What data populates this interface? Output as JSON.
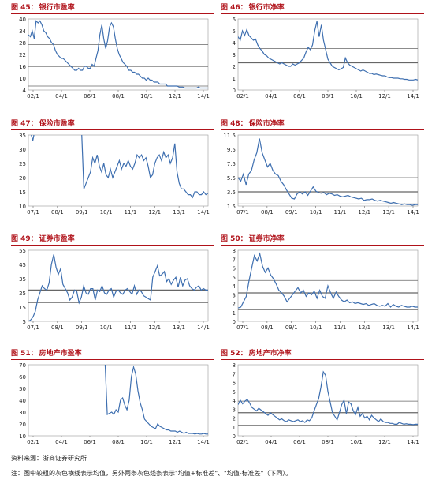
{
  "colors": {
    "title": "#b0121a",
    "line": "#3e6fb0",
    "ref": "#666666"
  },
  "chart_data": [
    {
      "id": "c45",
      "fig_no": "图 45：",
      "title": "银行市盈率",
      "type": "line",
      "yticks": [
        "4",
        "10",
        "16",
        "22",
        "28",
        "34",
        "40"
      ],
      "ylim": [
        4,
        40
      ],
      "xticks": [
        "02/1",
        "04/1",
        "06/1",
        "08/1",
        "10/1",
        "12/1",
        "14/1"
      ],
      "refs": [
        6,
        16,
        27
      ],
      "series": [
        {
          "values": [
            32,
            31,
            34,
            30,
            39,
            38,
            39,
            37,
            34,
            33,
            31,
            30,
            28,
            27,
            24,
            22,
            21,
            20,
            20,
            19,
            18,
            17,
            16,
            15,
            14,
            14,
            15,
            14,
            14,
            16,
            16,
            15,
            15,
            17,
            16,
            20,
            24,
            32,
            37,
            30,
            25,
            29,
            36,
            38,
            36,
            30,
            25,
            22,
            20,
            18,
            17,
            16,
            14,
            14,
            13,
            13,
            12,
            12,
            11,
            10,
            10,
            9,
            10,
            9,
            9,
            8,
            8,
            8,
            7,
            7,
            7,
            7,
            6,
            6,
            6,
            6,
            6,
            6,
            5.5,
            5.5,
            5.5,
            5,
            5,
            5,
            5,
            5,
            5,
            5,
            5.5,
            5,
            5,
            5,
            5,
            5
          ]
        }
      ]
    },
    {
      "id": "c46",
      "fig_no": "图 46：",
      "title": "银行市净率",
      "type": "line",
      "yticks": [
        "0",
        "1",
        "2",
        "3",
        "4",
        "5",
        "6"
      ],
      "ylim": [
        0,
        6
      ],
      "xticks": [
        "02/1",
        "04/1",
        "06/1",
        "08/1",
        "10/1",
        "12/1",
        "14/1"
      ],
      "refs": [
        1.1,
        2.3,
        3.5
      ],
      "series": [
        {
          "values": [
            4.5,
            4.2,
            5,
            4.6,
            5.1,
            4.6,
            4.4,
            4.2,
            4.3,
            3.8,
            3.5,
            3.3,
            3,
            2.9,
            2.7,
            2.6,
            2.5,
            2.4,
            2.3,
            2.2,
            2.3,
            2.2,
            2.1,
            2,
            2,
            2.2,
            2.1,
            2.2,
            2.3,
            2.5,
            2.7,
            3.2,
            3.6,
            3.4,
            3.8,
            5,
            5.8,
            4.5,
            5.5,
            4.2,
            3.4,
            2.6,
            2.3,
            2,
            1.9,
            1.8,
            1.7,
            1.8,
            1.9,
            2.7,
            2.3,
            2.1,
            2,
            1.9,
            1.8,
            1.7,
            1.6,
            1.7,
            1.6,
            1.5,
            1.4,
            1.4,
            1.3,
            1.35,
            1.3,
            1.25,
            1.2,
            1.2,
            1.1,
            1.05,
            1.05,
            1,
            1,
            1,
            0.95,
            0.95,
            0.9,
            0.9,
            0.85,
            0.85,
            0.85,
            0.9,
            0.85
          ]
        }
      ]
    },
    {
      "id": "c47",
      "fig_no": "图 47：",
      "title": "保险市盈率",
      "type": "line",
      "yticks": [
        "10",
        "15",
        "20",
        "25",
        "30",
        "35"
      ],
      "ylim": [
        10,
        35
      ],
      "xticks": [
        "07/1",
        "08/1",
        "09/1",
        "10/1",
        "11/1",
        "12/1",
        "13/1",
        "14/1"
      ],
      "refs": [],
      "series": [
        {
          "values": [
            null,
            36,
            33,
            37,
            null,
            null,
            null,
            null,
            null,
            null,
            null,
            null,
            null,
            null,
            null,
            null,
            null,
            null,
            null,
            null,
            null,
            null,
            null,
            null,
            36,
            16,
            18,
            20,
            22,
            27,
            25,
            28,
            24,
            22,
            25,
            21,
            20,
            23,
            20,
            22,
            24,
            26,
            23,
            25,
            24,
            26,
            24,
            23,
            25,
            28,
            27,
            28,
            26,
            27,
            24,
            20,
            21,
            25,
            27,
            28,
            26,
            29,
            27,
            28,
            25,
            27,
            32,
            22,
            18,
            16,
            16,
            15,
            14,
            14,
            13,
            15,
            15,
            14,
            14,
            15,
            14,
            14.5
          ]
        }
      ]
    },
    {
      "id": "c48",
      "fig_no": "图 48：",
      "title": "保险市净率",
      "type": "line",
      "yticks": [
        "1.5",
        "3.5",
        "5.5",
        "7.5",
        "9.5",
        "11.5"
      ],
      "ylim": [
        1.5,
        11.5
      ],
      "xticks": [
        "07/1",
        "08/1",
        "09/1",
        "10/1",
        "11/1",
        "12/1",
        "13/1",
        "14/1"
      ],
      "refs": [
        1.8,
        3.5,
        5.5
      ],
      "series": [
        {
          "values": [
            5.5,
            5,
            6,
            4.5,
            6,
            6.5,
            8,
            9,
            11,
            9,
            8,
            7,
            7.5,
            6.5,
            6,
            5.8,
            5,
            4.5,
            3.8,
            3.2,
            2.6,
            2.5,
            3.2,
            3.5,
            3.2,
            3.5,
            3,
            3.6,
            4.2,
            3.6,
            3.4,
            3.3,
            3.4,
            3.1,
            3.3,
            3.2,
            3.0,
            3.1,
            2.9,
            2.8,
            2.9,
            3,
            2.8,
            2.7,
            2.6,
            2.5,
            2.6,
            2.3,
            2.4,
            2.4,
            2.5,
            2.3,
            2.2,
            2.3,
            2.2,
            2.1,
            2,
            1.9,
            2,
            1.9,
            1.8,
            1.7,
            1.8,
            1.7,
            1.7,
            1.6,
            1.7,
            1.7
          ]
        }
      ]
    },
    {
      "id": "c49",
      "fig_no": "图 49：",
      "title": "证券市盈率",
      "type": "line",
      "yticks": [
        "5",
        "15",
        "25",
        "35",
        "45",
        "55"
      ],
      "ylim": [
        5,
        55
      ],
      "xticks": [
        "07/1",
        "08/1",
        "09/1",
        "10/1",
        "11/1",
        "12/1",
        "13/1",
        "14/1"
      ],
      "refs": [
        18,
        27,
        37
      ],
      "series": [
        {
          "values": [
            5,
            6,
            8,
            12,
            20,
            25,
            30,
            28,
            27,
            32,
            45,
            52,
            43,
            38,
            42,
            31,
            28,
            25,
            20,
            22,
            27,
            26,
            18,
            22,
            30,
            25,
            24,
            28,
            28,
            20,
            27,
            26,
            30,
            25,
            24,
            27,
            28,
            22,
            26,
            27,
            25,
            24,
            27,
            28,
            26,
            24,
            30,
            24,
            27,
            26,
            23,
            22,
            21,
            20,
            36,
            40,
            44,
            37,
            38,
            40,
            33,
            35,
            31,
            34,
            36,
            29,
            36,
            30,
            34,
            35,
            30,
            28,
            27,
            29,
            30,
            27,
            28,
            27,
            27
          ]
        }
      ]
    },
    {
      "id": "c50",
      "fig_no": "图 50：",
      "title": "证券市净率",
      "type": "line",
      "yticks": [
        "0",
        "1",
        "2",
        "3",
        "4",
        "5",
        "6",
        "7",
        "8"
      ],
      "ylim": [
        0,
        8
      ],
      "xticks": [
        "07/1",
        "08/1",
        "09/1",
        "10/1",
        "11/1",
        "12/1",
        "13/1",
        "14/1"
      ],
      "refs": [
        1.3,
        3.2,
        4.6
      ],
      "series": [
        {
          "values": [
            1.5,
            1.6,
            2.2,
            2.8,
            4.5,
            6,
            7.4,
            6.8,
            7.6,
            6.2,
            5.5,
            6,
            5.2,
            4.8,
            4.2,
            3.5,
            3.2,
            2.8,
            2.2,
            2.6,
            3,
            3.4,
            3.8,
            3.2,
            3.5,
            2.8,
            3.2,
            3,
            3.4,
            2.6,
            3.5,
            2.8,
            2.6,
            4,
            3.2,
            2.6,
            3.3,
            2.8,
            2.4,
            2.2,
            2.4,
            2.1,
            2.2,
            2,
            2.1,
            2,
            1.9,
            2,
            1.8,
            1.9,
            2,
            1.8,
            1.7,
            1.8,
            1.7,
            2,
            1.6,
            1.9,
            1.7,
            1.6,
            1.8,
            1.7,
            1.6,
            1.6,
            1.7,
            1.6,
            1.6
          ]
        }
      ]
    },
    {
      "id": "c51",
      "fig_no": "图 51：",
      "title": "房地产市盈率",
      "type": "line",
      "yticks": [
        "10",
        "20",
        "30",
        "40",
        "50",
        "60",
        "70"
      ],
      "ylim": [
        10,
        70
      ],
      "xticks": [
        "02/1",
        "04/1",
        "06/1",
        "08/1",
        "10/1",
        "12/1",
        "14/1"
      ],
      "refs": [],
      "series": [
        {
          "values": [
            null,
            null,
            null,
            null,
            null,
            null,
            null,
            null,
            null,
            null,
            null,
            null,
            null,
            null,
            null,
            null,
            null,
            null,
            null,
            null,
            null,
            null,
            null,
            null,
            null,
            null,
            null,
            null,
            null,
            null,
            null,
            null,
            null,
            null,
            null,
            72,
            28,
            29,
            30,
            28,
            32,
            30,
            40,
            42,
            36,
            32,
            40,
            60,
            68,
            62,
            48,
            38,
            32,
            24,
            22,
            20,
            18,
            17,
            16,
            20,
            18,
            17,
            16,
            15,
            15,
            14,
            14,
            14,
            13,
            14,
            13,
            12,
            13,
            12,
            12,
            12,
            11.5,
            12,
            11.5,
            11.5,
            12,
            11.5,
            11.5
          ]
        }
      ]
    },
    {
      "id": "c52",
      "fig_no": "图 52：",
      "title": "房地产市净率",
      "type": "line",
      "yticks": [
        "0",
        "1",
        "2",
        "3",
        "4",
        "5",
        "6",
        "7",
        "8"
      ],
      "ylim": [
        0,
        8
      ],
      "xticks": [
        "02/1",
        "04/1",
        "06/1",
        "08/1",
        "10/1",
        "12/1",
        "14/1"
      ],
      "refs": [
        1.2,
        2.6,
        3.9
      ],
      "series": [
        {
          "values": [
            3.5,
            4,
            3.6,
            3.9,
            4.1,
            3.7,
            3.2,
            3,
            2.8,
            3.1,
            2.9,
            2.7,
            2.5,
            2.3,
            2.6,
            2.4,
            2.2,
            2,
            1.8,
            1.9,
            1.7,
            1.6,
            1.8,
            1.7,
            1.6,
            1.7,
            1.8,
            1.6,
            1.7,
            1.5,
            1.8,
            1.7,
            2,
            2.8,
            3.5,
            4.2,
            5.5,
            7.2,
            6.8,
            5,
            3.8,
            2.6,
            2.2,
            1.8,
            2.6,
            3.5,
            4,
            2.5,
            3.8,
            3.6,
            2.8,
            2.4,
            3.2,
            2.2,
            2.5,
            2,
            2.2,
            1.8,
            2.3,
            2,
            1.8,
            1.6,
            1.9,
            1.6,
            1.5,
            1.5,
            1.4,
            1.4,
            1.3,
            1.3,
            1.5,
            1.4,
            1.3,
            1.35,
            1.3,
            1.3,
            1.25,
            1.3,
            1.3
          ]
        }
      ]
    }
  ],
  "footer": {
    "source": "资料来源：浙商证券研究所",
    "note": "注：图中较粗的灰色横线表示均值，另外两条灰色线条表示\"均值+标准差\"、\"均值-标准差\"（下同）。"
  }
}
